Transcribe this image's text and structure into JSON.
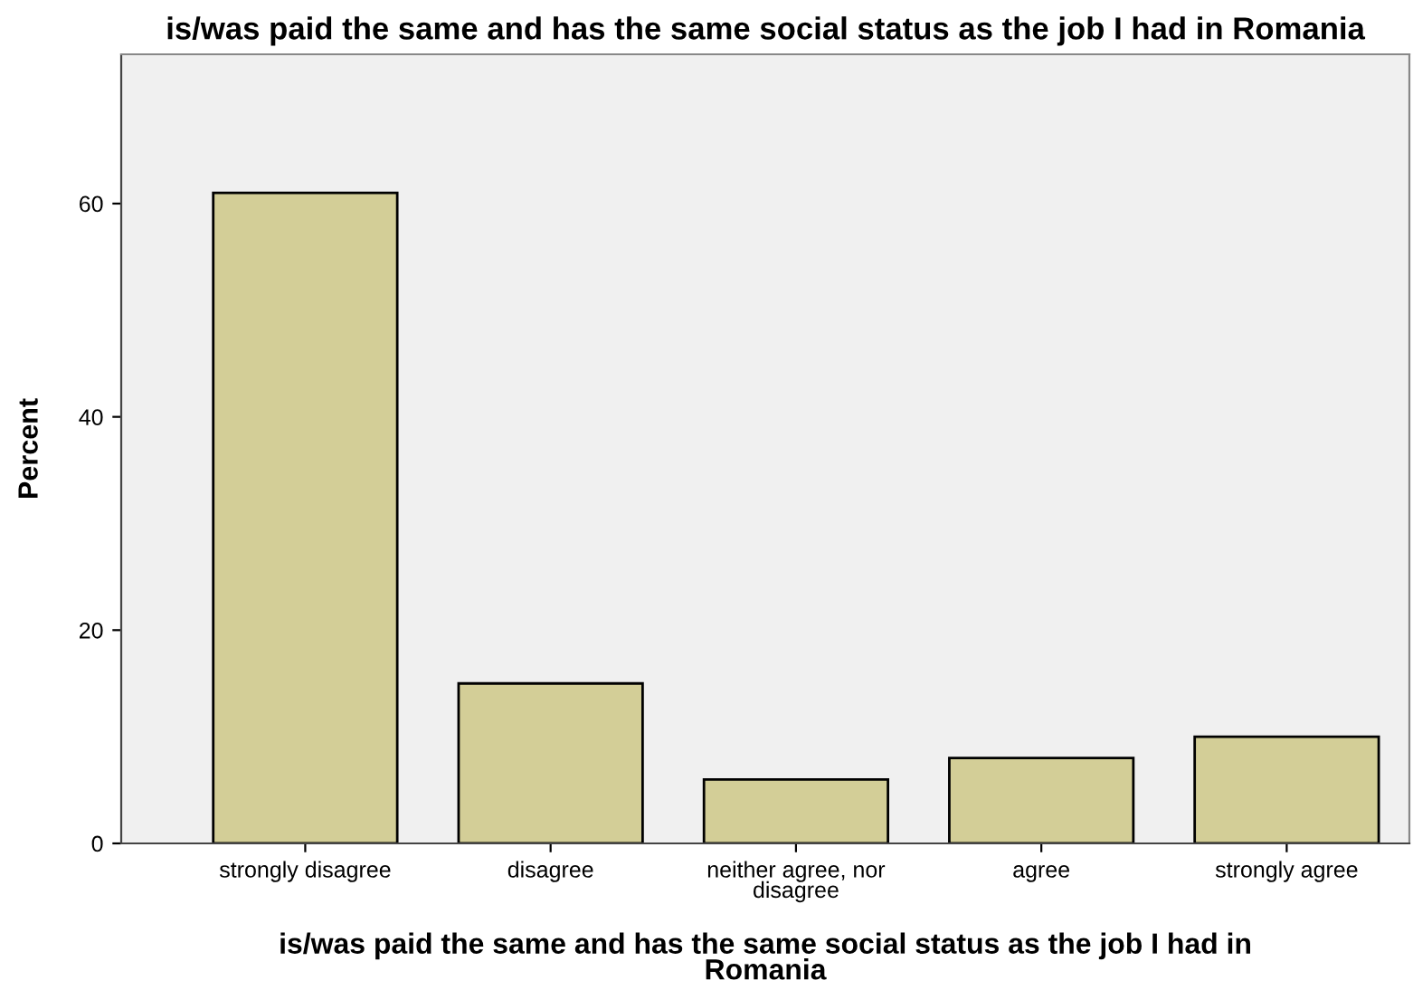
{
  "chart_data": {
    "type": "bar",
    "title": "is/was paid the same and has the same social status as the job I had in Romania",
    "xlabel": "is/was paid the same and has the same social status as the job I had in\nRomania",
    "ylabel": "Percent",
    "categories": [
      "strongly disagree",
      "disagree",
      "neither agree, nor\ndisagree",
      "agree",
      "strongly agree"
    ],
    "values": [
      61,
      15,
      6,
      8,
      10
    ],
    "color": "#d3ce97",
    "ylim": [
      0,
      74
    ],
    "yticks": [
      0,
      20,
      40,
      60
    ],
    "grid": false,
    "legend": false
  }
}
